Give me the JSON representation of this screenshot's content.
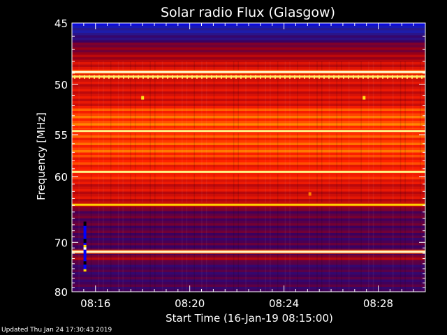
{
  "chart_data": {
    "type": "heatmap",
    "title": "Solar radio Flux (Glasgow)",
    "xlabel": "Start Time (16-Jan-19 08:15:00)",
    "ylabel": "Frequency [MHz]",
    "x_ticks": [
      "08:16",
      "08:20",
      "08:24",
      "08:28"
    ],
    "x_tick_minutes": [
      1,
      5,
      9,
      13
    ],
    "xlim_minutes": [
      0,
      15
    ],
    "y_ticks": [
      45,
      50,
      55,
      60,
      70,
      80
    ],
    "ylim": [
      45,
      80
    ],
    "y_scale": "reciprocal",
    "colormap": [
      "#ffffff",
      "#ffe000",
      "#ff2000",
      "#a00010",
      "#3a0060",
      "#2020a0",
      "#0000ff"
    ],
    "background_level": [
      {
        "mhz": 45.0,
        "level": 0.1
      },
      {
        "mhz": 46.3,
        "level": 0.3
      },
      {
        "mhz": 46.8,
        "level": 0.45
      },
      {
        "mhz": 48.6,
        "level": 0.6
      },
      {
        "mhz": 51.5,
        "level": 0.58
      },
      {
        "mhz": 52.5,
        "level": 0.7
      },
      {
        "mhz": 58.0,
        "level": 0.68
      },
      {
        "mhz": 60.5,
        "level": 0.62
      },
      {
        "mhz": 64.0,
        "level": 0.55
      },
      {
        "mhz": 64.6,
        "level": 0.42
      },
      {
        "mhz": 68.0,
        "level": 0.36
      },
      {
        "mhz": 72.0,
        "level": 0.38
      },
      {
        "mhz": 73.0,
        "level": 0.48
      },
      {
        "mhz": 74.0,
        "level": 0.36
      },
      {
        "mhz": 80.0,
        "level": 0.32
      }
    ],
    "bright_lines": [
      {
        "mhz": 48.9,
        "level": 0.97
      },
      {
        "mhz": 49.3,
        "level": 0.9
      },
      {
        "mhz": 54.6,
        "level": 0.92
      },
      {
        "mhz": 59.4,
        "level": 0.92
      },
      {
        "mhz": 63.9,
        "level": 0.82
      },
      {
        "mhz": 71.7,
        "level": 0.96
      }
    ],
    "spots": [
      {
        "minute": 3.0,
        "mhz": 51.2,
        "level": 0.85
      },
      {
        "minute": 12.4,
        "mhz": 51.2,
        "level": 0.85
      },
      {
        "minute": 10.1,
        "mhz": 62.3,
        "level": 0.75
      }
    ],
    "burst": {
      "minute": 0.55,
      "mhz_range": [
        66.5,
        75.5
      ]
    }
  },
  "footer": {
    "updated": "Updated Thu Jan 24 17:30:43 2019"
  }
}
